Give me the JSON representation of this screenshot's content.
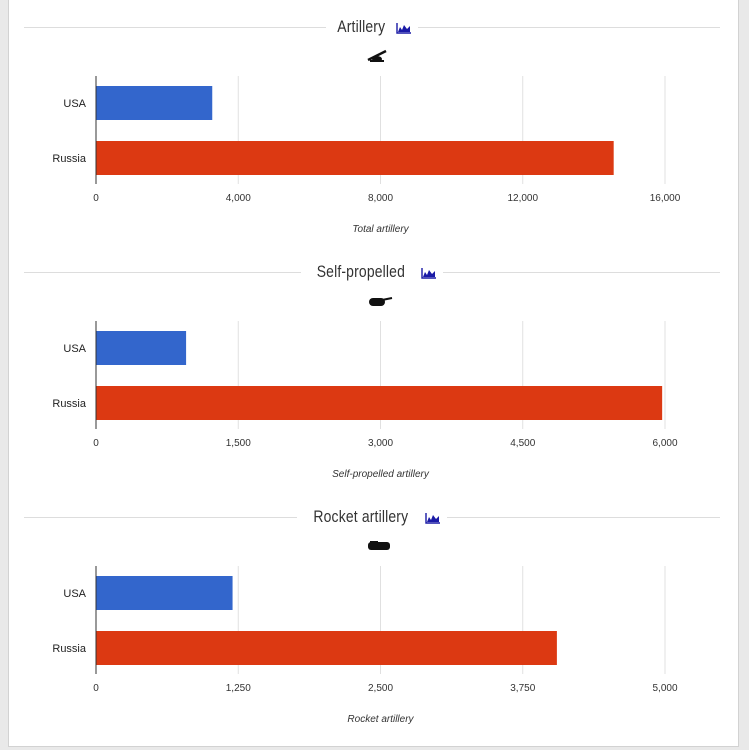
{
  "colors": {
    "usa": "#3366cc",
    "russia": "#dc3912",
    "grid": "#e0e0e0",
    "axis": "#333333"
  },
  "sections": [
    {
      "title": "Artillery",
      "chart_icon": "area-chart-icon",
      "weapon_icon": "howitzer-icon"
    },
    {
      "title": "Self-propelled",
      "chart_icon": "area-chart-icon",
      "weapon_icon": "self-propelled-gun-icon"
    },
    {
      "title": "Rocket artillery",
      "chart_icon": "area-chart-icon",
      "weapon_icon": "rocket-launcher-icon"
    }
  ],
  "chart_data": [
    {
      "type": "bar",
      "orientation": "horizontal",
      "categories": [
        "USA",
        "Russia"
      ],
      "values": [
        3269,
        14557
      ],
      "colors": [
        "#3366cc",
        "#dc3912"
      ],
      "xlabel": "Total artillery",
      "xlim": [
        0,
        16000
      ],
      "ticks": [
        "0",
        "4,000",
        "8,000",
        "12,000",
        "16,000"
      ],
      "grid": true
    },
    {
      "type": "bar",
      "orientation": "horizontal",
      "categories": [
        "USA",
        "Russia"
      ],
      "values": [
        950,
        5970
      ],
      "colors": [
        "#3366cc",
        "#dc3912"
      ],
      "xlabel": "Self-propelled artillery",
      "xlim": [
        0,
        6000
      ],
      "ticks": [
        "0",
        "1,500",
        "3,000",
        "4,500",
        "6,000"
      ],
      "grid": true
    },
    {
      "type": "bar",
      "orientation": "horizontal",
      "categories": [
        "USA",
        "Russia"
      ],
      "values": [
        1200,
        4050
      ],
      "colors": [
        "#3366cc",
        "#dc3912"
      ],
      "xlabel": "Rocket artillery",
      "xlim": [
        0,
        5000
      ],
      "ticks": [
        "0",
        "1,250",
        "2,500",
        "3,750",
        "5,000"
      ],
      "grid": true
    }
  ]
}
